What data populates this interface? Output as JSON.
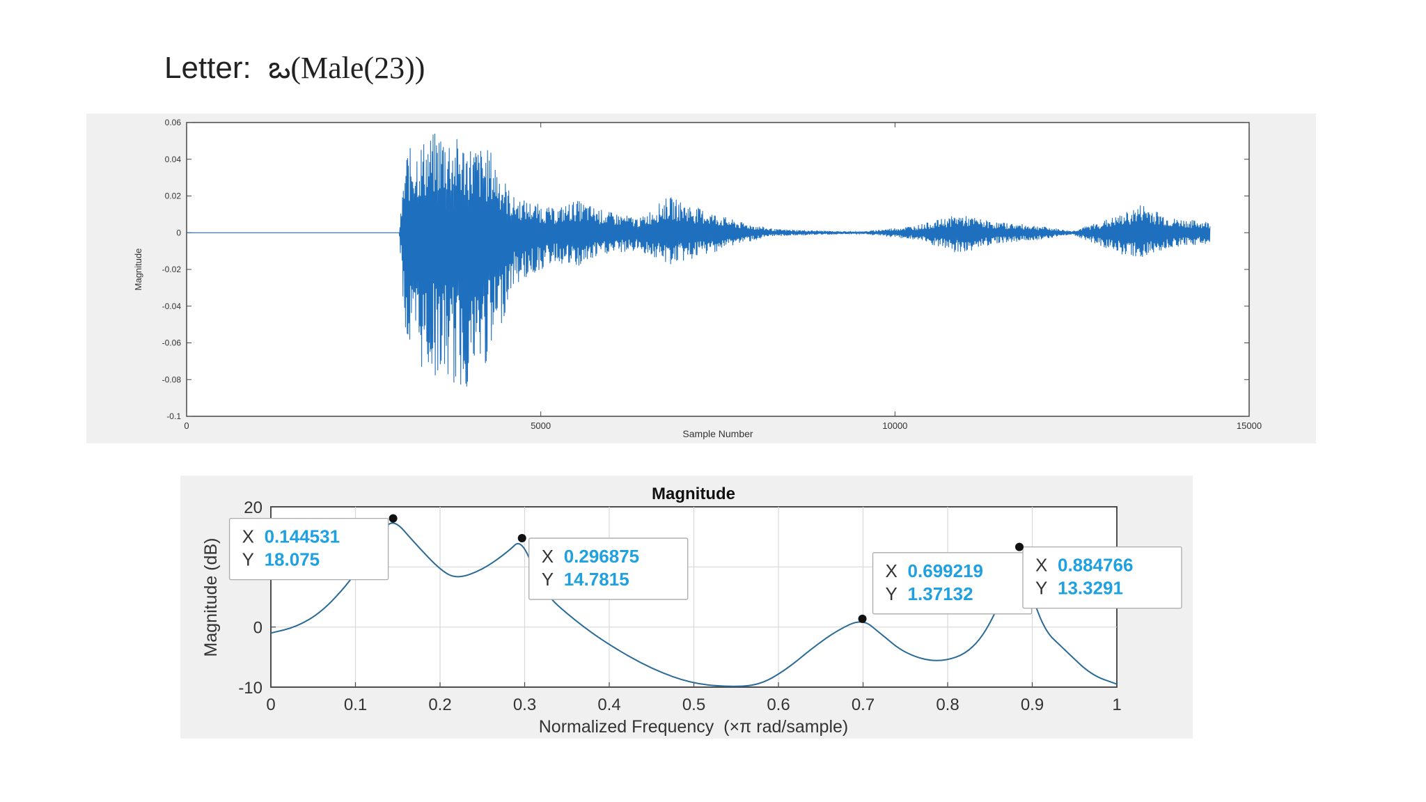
{
  "page": {
    "title_prefix": "Letter:",
    "title_rest": "ఒ(Male(23))"
  },
  "colors": {
    "waveform": "#1f6fbf",
    "magnitude_curve": "#2a6a96",
    "datatip_value": "#1fa0e0",
    "panel_bg": "#f0f0f0"
  },
  "chart_data": [
    {
      "type": "line",
      "title": "",
      "xlabel": "Sample Number",
      "ylabel": "Magnitude",
      "xlim": [
        0,
        15000
      ],
      "ylim": [
        -0.1,
        0.06
      ],
      "x_ticks": [
        "0",
        "5000",
        "10000",
        "15000"
      ],
      "x_tick_values": [
        0,
        5000,
        10000,
        15000
      ],
      "y_ticks": [
        "0.06",
        "0.04",
        "0.02",
        "0",
        "-0.02",
        "-0.04",
        "-0.06",
        "-0.08",
        "-0.1"
      ],
      "y_tick_values": [
        0.06,
        0.04,
        0.02,
        0,
        -0.02,
        -0.04,
        -0.06,
        -0.08,
        -0.1
      ],
      "grid": false,
      "series": [
        {
          "envelope": [
            {
              "x": 0,
              "pos": 0,
              "neg": 0
            },
            {
              "x": 3000,
              "pos": 0,
              "neg": 0
            },
            {
              "x": 3100,
              "pos": 0.045,
              "neg": -0.065
            },
            {
              "x": 3300,
              "pos": 0.05,
              "neg": -0.075
            },
            {
              "x": 3600,
              "pos": 0.057,
              "neg": -0.08
            },
            {
              "x": 3900,
              "pos": 0.05,
              "neg": -0.088
            },
            {
              "x": 4300,
              "pos": 0.045,
              "neg": -0.07
            },
            {
              "x": 4600,
              "pos": 0.02,
              "neg": -0.03
            },
            {
              "x": 5200,
              "pos": 0.013,
              "neg": -0.016
            },
            {
              "x": 5500,
              "pos": 0.018,
              "neg": -0.02
            },
            {
              "x": 5900,
              "pos": 0.012,
              "neg": -0.012
            },
            {
              "x": 6400,
              "pos": 0.008,
              "neg": -0.01
            },
            {
              "x": 6800,
              "pos": 0.02,
              "neg": -0.018
            },
            {
              "x": 7200,
              "pos": 0.014,
              "neg": -0.014
            },
            {
              "x": 7800,
              "pos": 0.006,
              "neg": -0.006
            },
            {
              "x": 8300,
              "pos": 0.002,
              "neg": -0.002
            },
            {
              "x": 9500,
              "pos": 0.0005,
              "neg": -0.0005
            },
            {
              "x": 10300,
              "pos": 0.004,
              "neg": -0.004
            },
            {
              "x": 10900,
              "pos": 0.01,
              "neg": -0.012
            },
            {
              "x": 11400,
              "pos": 0.006,
              "neg": -0.006
            },
            {
              "x": 12000,
              "pos": 0.004,
              "neg": -0.004
            },
            {
              "x": 12500,
              "pos": 0.001,
              "neg": -0.001
            },
            {
              "x": 13200,
              "pos": 0.01,
              "neg": -0.012
            },
            {
              "x": 13500,
              "pos": 0.016,
              "neg": -0.014
            },
            {
              "x": 13900,
              "pos": 0.008,
              "neg": -0.008
            },
            {
              "x": 14450,
              "pos": 0.006,
              "neg": -0.006
            }
          ]
        }
      ]
    },
    {
      "type": "line",
      "title": "Magnitude",
      "xlabel": "Normalized Frequency  (×π rad/sample)",
      "ylabel": "Magnitude (dB)",
      "xlim": [
        0,
        1
      ],
      "ylim": [
        -10,
        20
      ],
      "x_ticks": [
        "0",
        "0.1",
        "0.2",
        "0.3",
        "0.4",
        "0.5",
        "0.6",
        "0.7",
        "0.8",
        "0.9",
        "1"
      ],
      "x_tick_values": [
        0,
        0.1,
        0.2,
        0.3,
        0.4,
        0.5,
        0.6,
        0.7,
        0.8,
        0.9,
        1
      ],
      "y_ticks": [
        "20",
        "0",
        "-10"
      ],
      "y_tick_values": [
        20,
        0,
        -10
      ],
      "y_grid_values": [
        20,
        10,
        0,
        -10
      ],
      "grid": true,
      "series": [
        {
          "x": [
            0,
            0.03,
            0.06,
            0.09,
            0.11,
            0.13,
            0.1445,
            0.17,
            0.2,
            0.22,
            0.25,
            0.28,
            0.2969,
            0.32,
            0.36,
            0.4,
            0.45,
            0.5,
            0.55,
            0.58,
            0.61,
            0.64,
            0.67,
            0.6992,
            0.72,
            0.75,
            0.79,
            0.83,
            0.86,
            0.8848,
            0.91,
            0.94,
            0.97,
            1
          ],
          "y": [
            -1,
            0,
            2.5,
            7,
            11,
            15.5,
            18.075,
            14,
            9.5,
            8,
            9.5,
            12.5,
            14.7815,
            6,
            1,
            -3,
            -7,
            -9.5,
            -10.2,
            -9.5,
            -7,
            -3.5,
            -0.5,
            1.37132,
            -1,
            -4.5,
            -6,
            -4,
            3,
            13.3291,
            0,
            -4,
            -8,
            -9.5
          ]
        }
      ],
      "annotations": [
        {
          "label_x": "X",
          "label_y": "Y",
          "x": "0.144531",
          "y": "18.075"
        },
        {
          "label_x": "X",
          "label_y": "Y",
          "x": "0.296875",
          "y": "14.7815"
        },
        {
          "label_x": "X",
          "label_y": "Y",
          "x": "0.699219",
          "y": "1.37132"
        },
        {
          "label_x": "X",
          "label_y": "Y",
          "x": "0.884766",
          "y": "13.3291"
        }
      ]
    }
  ]
}
